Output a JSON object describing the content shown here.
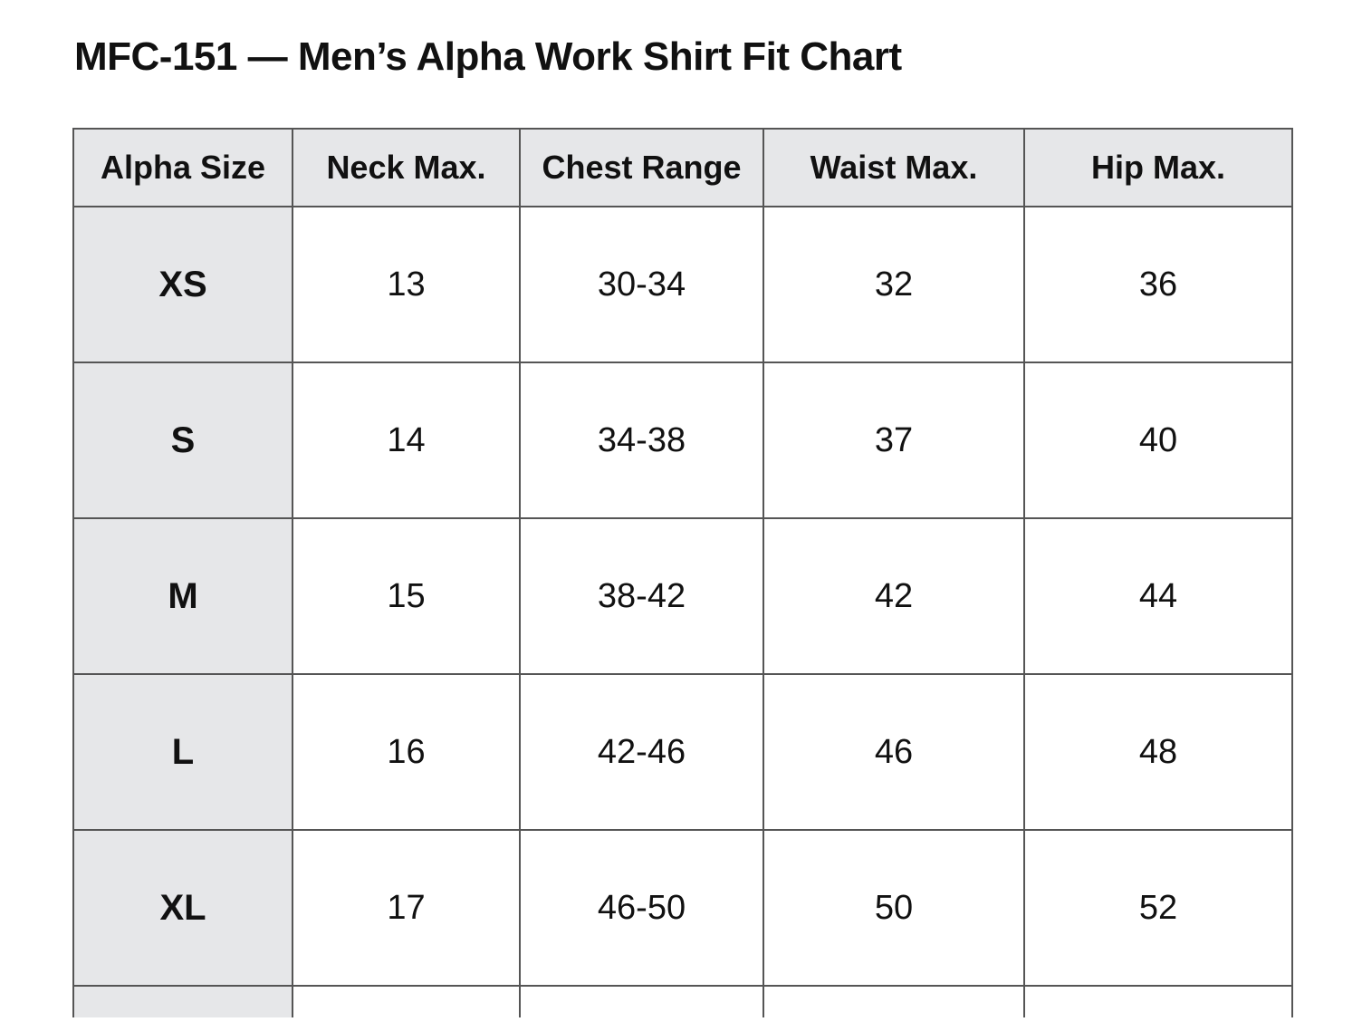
{
  "header": {
    "title": "MFC-151 — Men’s Alpha Work Shirt Fit Chart"
  },
  "table": {
    "columns": [
      "Alpha Size",
      "Neck Max.",
      "Chest Range",
      "Waist Max.",
      "Hip Max."
    ],
    "rows": [
      [
        "XS",
        13,
        "30-34",
        32,
        36
      ],
      [
        "S",
        14,
        "34-38",
        37,
        40
      ],
      [
        "M",
        15,
        "38-42",
        42,
        44
      ],
      [
        "L",
        16,
        "42-46",
        46,
        48
      ],
      [
        "XL",
        17,
        "46-50",
        50,
        52
      ]
    ]
  }
}
